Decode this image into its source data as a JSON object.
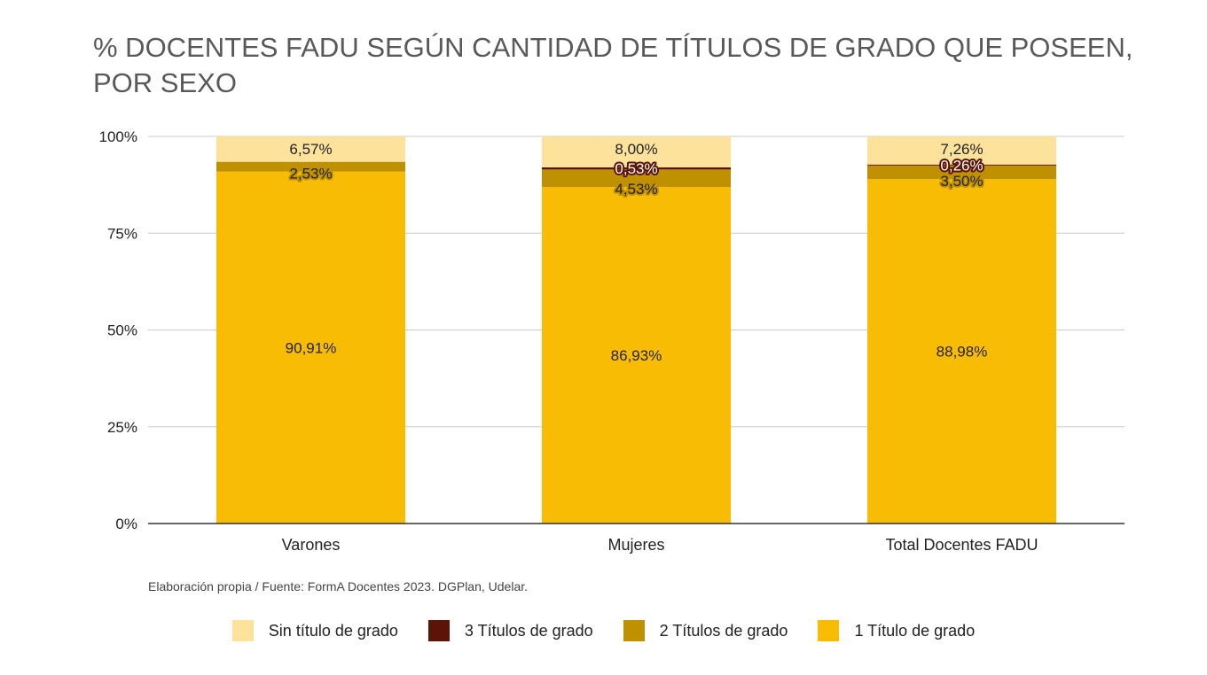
{
  "title": "% DOCENTES FADU SEGÚN CANTIDAD DE TÍTULOS DE GRADO QUE POSEEN, POR SEXO",
  "source": "Elaboración propia / Fuente: FormA Docentes 2023. DGPlan, Udelar.",
  "colors": {
    "sin_titulo": "#fde29b",
    "tres_titulos": "#5c1407",
    "dos_titulos": "#bf9000",
    "un_titulo": "#f9bc05"
  },
  "chart_data": {
    "type": "bar",
    "stacked": true,
    "title": "% DOCENTES FADU SEGÚN CANTIDAD DE TÍTULOS DE GRADO QUE POSEEN, POR SEXO",
    "categories": [
      "Varones",
      "Mujeres",
      "Total Docentes FADU"
    ],
    "ylim": [
      0,
      100
    ],
    "yticks": [
      "0%",
      "25%",
      "50%",
      "75%",
      "100%"
    ],
    "grid": true,
    "legend_position": "bottom",
    "series": [
      {
        "name": "1 Título de grado",
        "color": "#f9bc05",
        "values": [
          90.91,
          86.93,
          88.98
        ],
        "labels": [
          "90,91%",
          "86,93%",
          "88,98%"
        ]
      },
      {
        "name": "2 Títulos de grado",
        "color": "#bf9000",
        "values": [
          2.53,
          4.53,
          3.5
        ],
        "labels": [
          "2,53%",
          "4,53%",
          "3,50%"
        ]
      },
      {
        "name": "3 Títulos de grado",
        "color": "#5c1407",
        "values": [
          0,
          0.53,
          0.26
        ],
        "labels": [
          "",
          "0,53%",
          "0,26%"
        ]
      },
      {
        "name": "Sin título de grado",
        "color": "#fde29b",
        "values": [
          6.57,
          8.0,
          7.26
        ],
        "labels": [
          "6,57%",
          "8,00%",
          "7,26%"
        ]
      }
    ]
  },
  "legend": [
    {
      "label": "Sin título de grado",
      "color": "#fde29b"
    },
    {
      "label": "3 Títulos de grado",
      "color": "#5c1407"
    },
    {
      "label": "2 Títulos de grado",
      "color": "#bf9000"
    },
    {
      "label": "1 Título de grado",
      "color": "#f9bc05"
    }
  ]
}
